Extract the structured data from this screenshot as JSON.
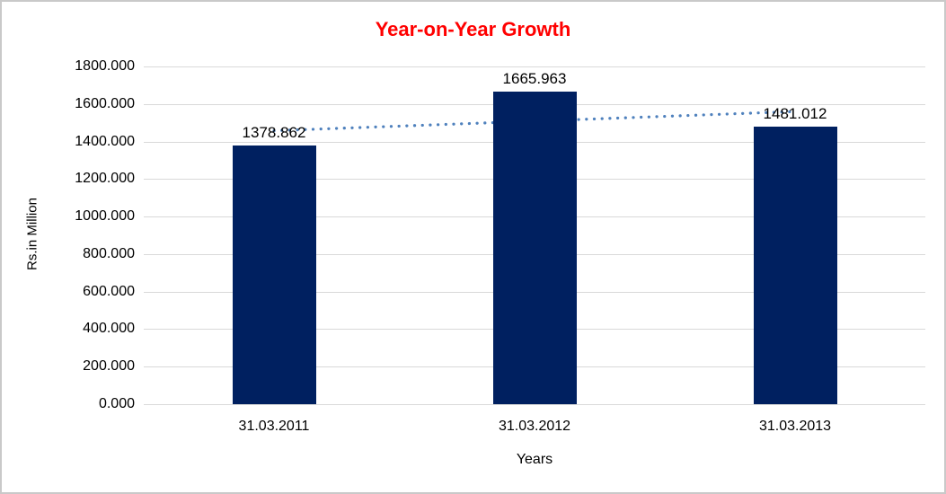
{
  "chart_data": {
    "type": "bar",
    "title": "Year-on-Year Growth",
    "xlabel": "Years",
    "ylabel": "Rs.in Million",
    "categories": [
      "31.03.2011",
      "31.03.2012",
      "31.03.2013"
    ],
    "values": [
      1378.862,
      1665.963,
      1481.012
    ],
    "data_labels": [
      "1378.862",
      "1665.963",
      "1481.012"
    ],
    "yticks": [
      0,
      200,
      400,
      600,
      800,
      1000,
      1200,
      1400,
      1600,
      1800
    ],
    "ytick_labels": [
      "0.000",
      "200.000",
      "400.000",
      "600.000",
      "800.000",
      "1000.000",
      "1200.000",
      "1400.000",
      "1600.000",
      "1800.000"
    ],
    "ylim": [
      0,
      1800
    ],
    "grid": true,
    "legend": "none",
    "trendline": {
      "type": "linear",
      "style": "dotted"
    },
    "colors": {
      "bar": "#002060",
      "trendline": "#4f81bd",
      "title": "#ff0000",
      "gridline": "#d9d9d9",
      "text": "#000000"
    }
  }
}
